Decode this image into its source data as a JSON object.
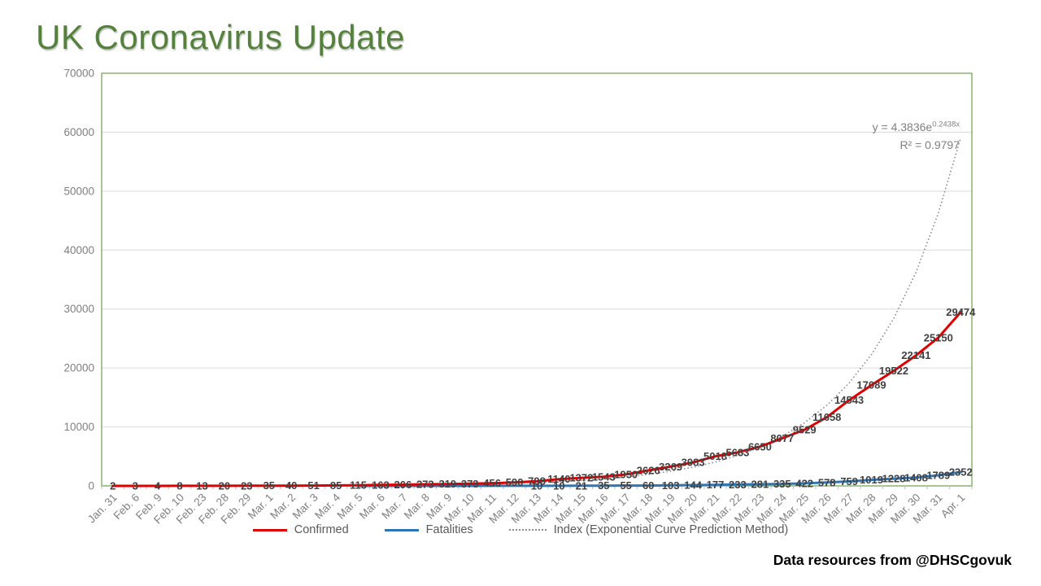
{
  "page": {
    "background": "#ffffff"
  },
  "header": {
    "title": "UK Coronavirus Update",
    "title_color": "#54813c"
  },
  "annotation": {
    "equation_base": "y = 4.3836e",
    "equation_exponent": "0.2438x",
    "r_squared": "R² = 0.9797"
  },
  "footer": {
    "credit": "Data resources from @DHSCgovuk"
  },
  "chart_data": {
    "type": "line",
    "title": "UK Coronavirus Update",
    "xlabel": "",
    "ylabel": "",
    "ylim": [
      0,
      70000
    ],
    "yticks": [
      0,
      10000,
      20000,
      30000,
      40000,
      50000,
      60000,
      70000
    ],
    "grid": true,
    "legend_position": "bottom",
    "plot_border_color": "#76a85c",
    "gridline_color": "#d9d9d9",
    "axis_line_color": "#bfbfbf",
    "axis_label_color": "#7f7f7f",
    "data_label_color": "#404040",
    "categories": [
      "Jan. 31",
      "Feb. 6",
      "Feb. 9",
      "Feb. 10",
      "Feb. 23",
      "Feb. 28",
      "Feb. 29",
      "Mar. 1",
      "Mar. 2",
      "Mar. 3",
      "Mar. 4",
      "Mar. 5",
      "Mar. 6",
      "Mar. 7",
      "Mar. 8",
      "Mar. 9",
      "Mar. 10",
      "Mar. 11",
      "Mar. 12",
      "Mar. 13",
      "Mar. 14",
      "Mar. 15",
      "Mar. 16",
      "Mar. 17",
      "Mar. 18",
      "Mar. 19",
      "Mar. 20",
      "Mar. 21",
      "Mar. 22",
      "Mar. 23",
      "Mar. 24",
      "Mar. 25",
      "Mar. 26",
      "Mar. 27",
      "Mar. 28",
      "Mar. 29",
      "Mar. 30",
      "Mar. 31",
      "Apr. 1"
    ],
    "series": [
      {
        "name": "Confirmed",
        "color": "#e00000",
        "line_style": "solid",
        "values": [
          2,
          3,
          4,
          8,
          13,
          20,
          23,
          35,
          40,
          51,
          85,
          115,
          163,
          206,
          273,
          319,
          373,
          456,
          590,
          798,
          1140,
          1372,
          1543,
          1950,
          2626,
          3269,
          3983,
          5018,
          5683,
          6650,
          8077,
          9529,
          11658,
          14543,
          17089,
          19522,
          22141,
          25150,
          29474
        ],
        "labels": [
          2,
          3,
          4,
          8,
          13,
          20,
          23,
          35,
          40,
          51,
          85,
          115,
          163,
          206,
          273,
          319,
          373,
          456,
          590,
          798,
          1140,
          1372,
          1543,
          1950,
          2626,
          3269,
          3983,
          5018,
          5683,
          6650,
          8077,
          9529,
          11658,
          14543,
          17089,
          19522,
          22141,
          25150,
          29474
        ]
      },
      {
        "name": "Fatalities",
        "color": "#2e75b6",
        "line_style": "solid",
        "values": [
          null,
          null,
          null,
          null,
          null,
          null,
          null,
          null,
          null,
          null,
          null,
          1,
          2,
          2,
          3,
          5,
          6,
          8,
          8,
          10,
          10,
          21,
          35,
          55,
          60,
          103,
          144,
          177,
          233,
          281,
          335,
          422,
          578,
          759,
          1019,
          1228,
          1408,
          1789,
          2352
        ],
        "labels": [
          null,
          null,
          null,
          null,
          null,
          null,
          null,
          null,
          null,
          null,
          null,
          null,
          null,
          null,
          null,
          null,
          null,
          null,
          null,
          10,
          10,
          21,
          35,
          55,
          60,
          103,
          144,
          177,
          233,
          281,
          335,
          422,
          578,
          759,
          1019,
          1228,
          1408,
          1789,
          2352
        ]
      },
      {
        "name": "Index (Exponential Curve Prediction Method)",
        "color": "#8c8c8c",
        "line_style": "dotted",
        "trendline": {
          "a": 4.3836,
          "b": 0.2438,
          "r_squared": 0.9797
        }
      }
    ]
  }
}
